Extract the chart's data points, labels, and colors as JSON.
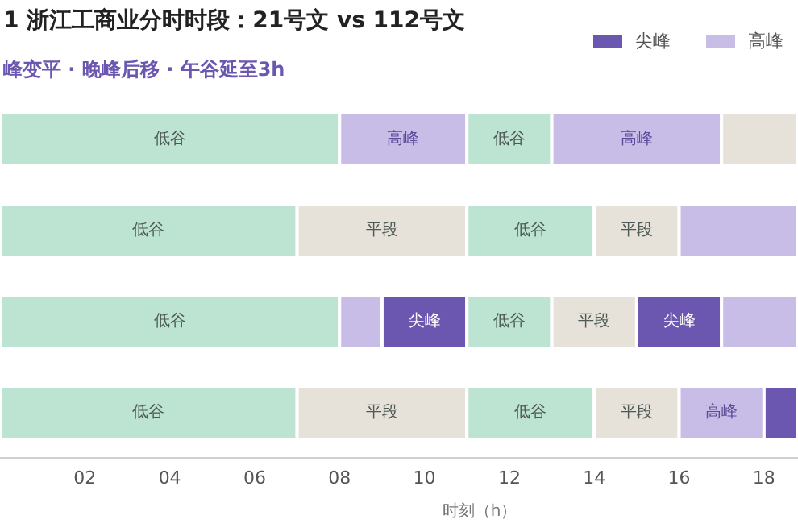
{
  "chart_data": {
    "type": "bar",
    "orientation": "horizontal",
    "stacked": true,
    "title": "1 浙江工商业分时时段：21号文 vs 112号文",
    "subtitle": "峰变平 · 晚峰后移 · 午谷延至3h",
    "xlabel": "时刻（h）",
    "categories": [
      null,
      null,
      null,
      null
    ],
    "tick_labels": "x",
    "legend": "top right",
    "xlim": [
      0,
      18.8
    ],
    "xticks": [
      {
        "value": 2,
        "label": "02"
      },
      {
        "value": 4,
        "label": "04"
      },
      {
        "value": 6,
        "label": "06"
      },
      {
        "value": 8,
        "label": "08"
      },
      10,
      12,
      14,
      16,
      18
    ],
    "series": [
      {
        "values": [
          8,
          7,
          8,
          7
        ],
        "colors": [
          "#bde3d3",
          "#bde3d3",
          "#bde3d3",
          "#bde3d3"
        ],
        "value_labels": [
          "低谷",
          "低谷",
          "低谷",
          "低谷"
        ]
      },
      {
        "values": [
          3,
          4,
          1,
          4
        ],
        "colors": [
          "#c8bde6",
          "#e6e2da",
          "#c8bde6",
          "#e6e2da"
        ],
        "value_labels": [
          "高峰",
          "平段",
          null,
          "平段"
        ]
      },
      {
        "values": [
          2,
          3,
          2,
          3
        ],
        "colors": [
          "#bde3d3",
          "#bde3d3",
          "#6b57b0",
          "#bde3d3"
        ],
        "value_labels": [
          "低谷",
          "低谷",
          "尖峰",
          "低谷"
        ]
      },
      {
        "values": [
          4,
          2,
          2,
          2
        ],
        "colors": [
          "#c8bde6",
          "#e6e2da",
          "#bde3d3",
          "#e6e2da"
        ],
        "value_labels": [
          "高峰",
          "平段",
          "低谷",
          "平段"
        ]
      },
      {
        "values": [
          1.8,
          2.8,
          2,
          2
        ],
        "colors": [
          "#e6e2da",
          "#c8bde6",
          "#e6e2da",
          "#c8bde6"
        ],
        "value_labels": [
          null,
          null,
          "平段",
          "高峰"
        ]
      },
      {
        "name": "尖峰",
        "color": "#6b57b0",
        "values": [
          null,
          null,
          2,
          0.8
        ],
        "value_labels": [
          null,
          null,
          "尖峰",
          null
        ]
      },
      {
        "name": "高峰",
        "color": "#c8bde6",
        "values": [
          null,
          null,
          1.8,
          null
        ]
      }
    ]
  }
}
